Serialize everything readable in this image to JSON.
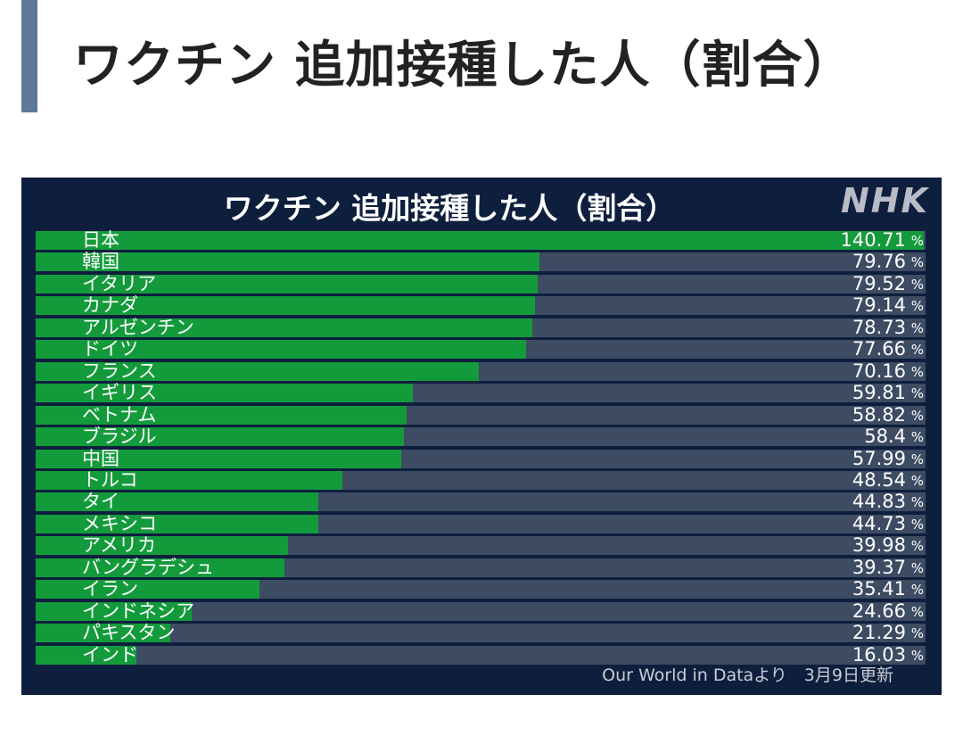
{
  "page": {
    "heading": "ワクチン 追加接種した人（割合）"
  },
  "chart_data": {
    "type": "bar",
    "orientation": "horizontal",
    "title": "ワクチン 追加接種した人（割合）",
    "logo": "NHK",
    "unit": "%",
    "source": "Our World in Dataより　3月9日更新",
    "xlim": [
      0,
      141
    ],
    "colors": {
      "bar": "#139b3b",
      "track": "#3d4b63",
      "background": "#0e1f3d"
    },
    "categories": [
      "日本",
      "韓国",
      "イタリア",
      "カナダ",
      "アルゼンチン",
      "ドイツ",
      "フランス",
      "イギリス",
      "ベトナム",
      "ブラジル",
      "中国",
      "トルコ",
      "タイ",
      "メキシコ",
      "アメリカ",
      "バングラデシュ",
      "イラン",
      "インドネシア",
      "パキスタン",
      "インド"
    ],
    "values": [
      140.71,
      79.76,
      79.52,
      79.14,
      78.73,
      77.66,
      70.16,
      59.81,
      58.82,
      58.4,
      57.99,
      48.54,
      44.83,
      44.73,
      39.98,
      39.37,
      35.41,
      24.66,
      21.29,
      16.03
    ],
    "value_labels": [
      "140.71",
      "79.76",
      "79.52",
      "79.14",
      "78.73",
      "77.66",
      "70.16",
      "59.81",
      "58.82",
      "58.4",
      "57.99",
      "48.54",
      "44.83",
      "44.73",
      "39.98",
      "39.37",
      "35.41",
      "24.66",
      "21.29",
      "16.03"
    ]
  }
}
